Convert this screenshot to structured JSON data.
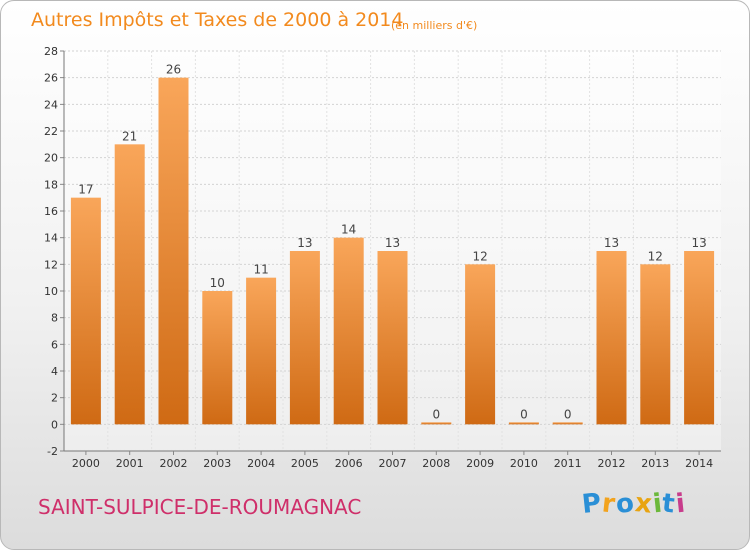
{
  "header": {
    "title": "Autres Impôts et Taxes de 2000 à 2014",
    "subtitle": "(en milliers d'€)"
  },
  "footer": {
    "commune": "SAINT-SULPICE-DE-ROUMAGNAC",
    "brand": "Proxiti",
    "brand_letters": [
      {
        "char": "P",
        "color": "#2a8fd6"
      },
      {
        "char": "r",
        "color": "#f2a31e"
      },
      {
        "char": "o",
        "color": "#2a8fd6"
      },
      {
        "char": "x",
        "color": "#e8a412"
      },
      {
        "char": "i",
        "color": "#6bb83a"
      },
      {
        "char": "t",
        "color": "#2a8fd6"
      },
      {
        "char": "i",
        "color": "#c83c8c"
      }
    ]
  },
  "colors": {
    "accent": "#f28a1e",
    "commune": "#cf2f6a",
    "bar_light": "#f9a65a",
    "bar_dark": "#cf6a14"
  },
  "chart_data": {
    "type": "bar",
    "title": "Autres Impôts et Taxes de 2000 à 2014",
    "subtitle": "(en milliers d'€)",
    "categories": [
      "2000",
      "2001",
      "2002",
      "2003",
      "2004",
      "2005",
      "2006",
      "2007",
      "2008",
      "2009",
      "2010",
      "2011",
      "2012",
      "2013",
      "2014"
    ],
    "values": [
      17,
      21,
      26,
      10,
      11,
      13,
      14,
      13,
      0,
      12,
      0,
      0,
      13,
      12,
      13
    ],
    "ylim": [
      -2,
      28
    ],
    "yticks": [
      -2,
      0,
      2,
      4,
      6,
      8,
      10,
      12,
      14,
      16,
      18,
      20,
      22,
      24,
      26,
      28
    ],
    "grid": true,
    "data_labels": true
  }
}
